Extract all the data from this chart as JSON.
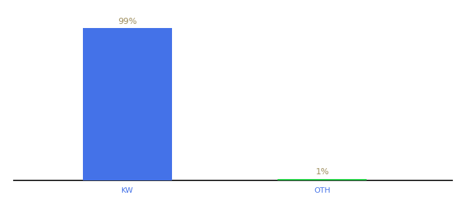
{
  "categories": [
    "KW",
    "OTH"
  ],
  "values": [
    99,
    1
  ],
  "bar_colors": [
    "#4472e8",
    "#22cc44"
  ],
  "label_color": "#a09060",
  "label_fontsize": 9,
  "xlabel_fontsize": 8,
  "xlabel_color": "#4472e8",
  "background_color": "#ffffff",
  "ylim": [
    0,
    108
  ],
  "bar_width": 0.55,
  "x_positions": [
    1.0,
    2.2
  ],
  "xlim": [
    0.3,
    3.0
  ]
}
